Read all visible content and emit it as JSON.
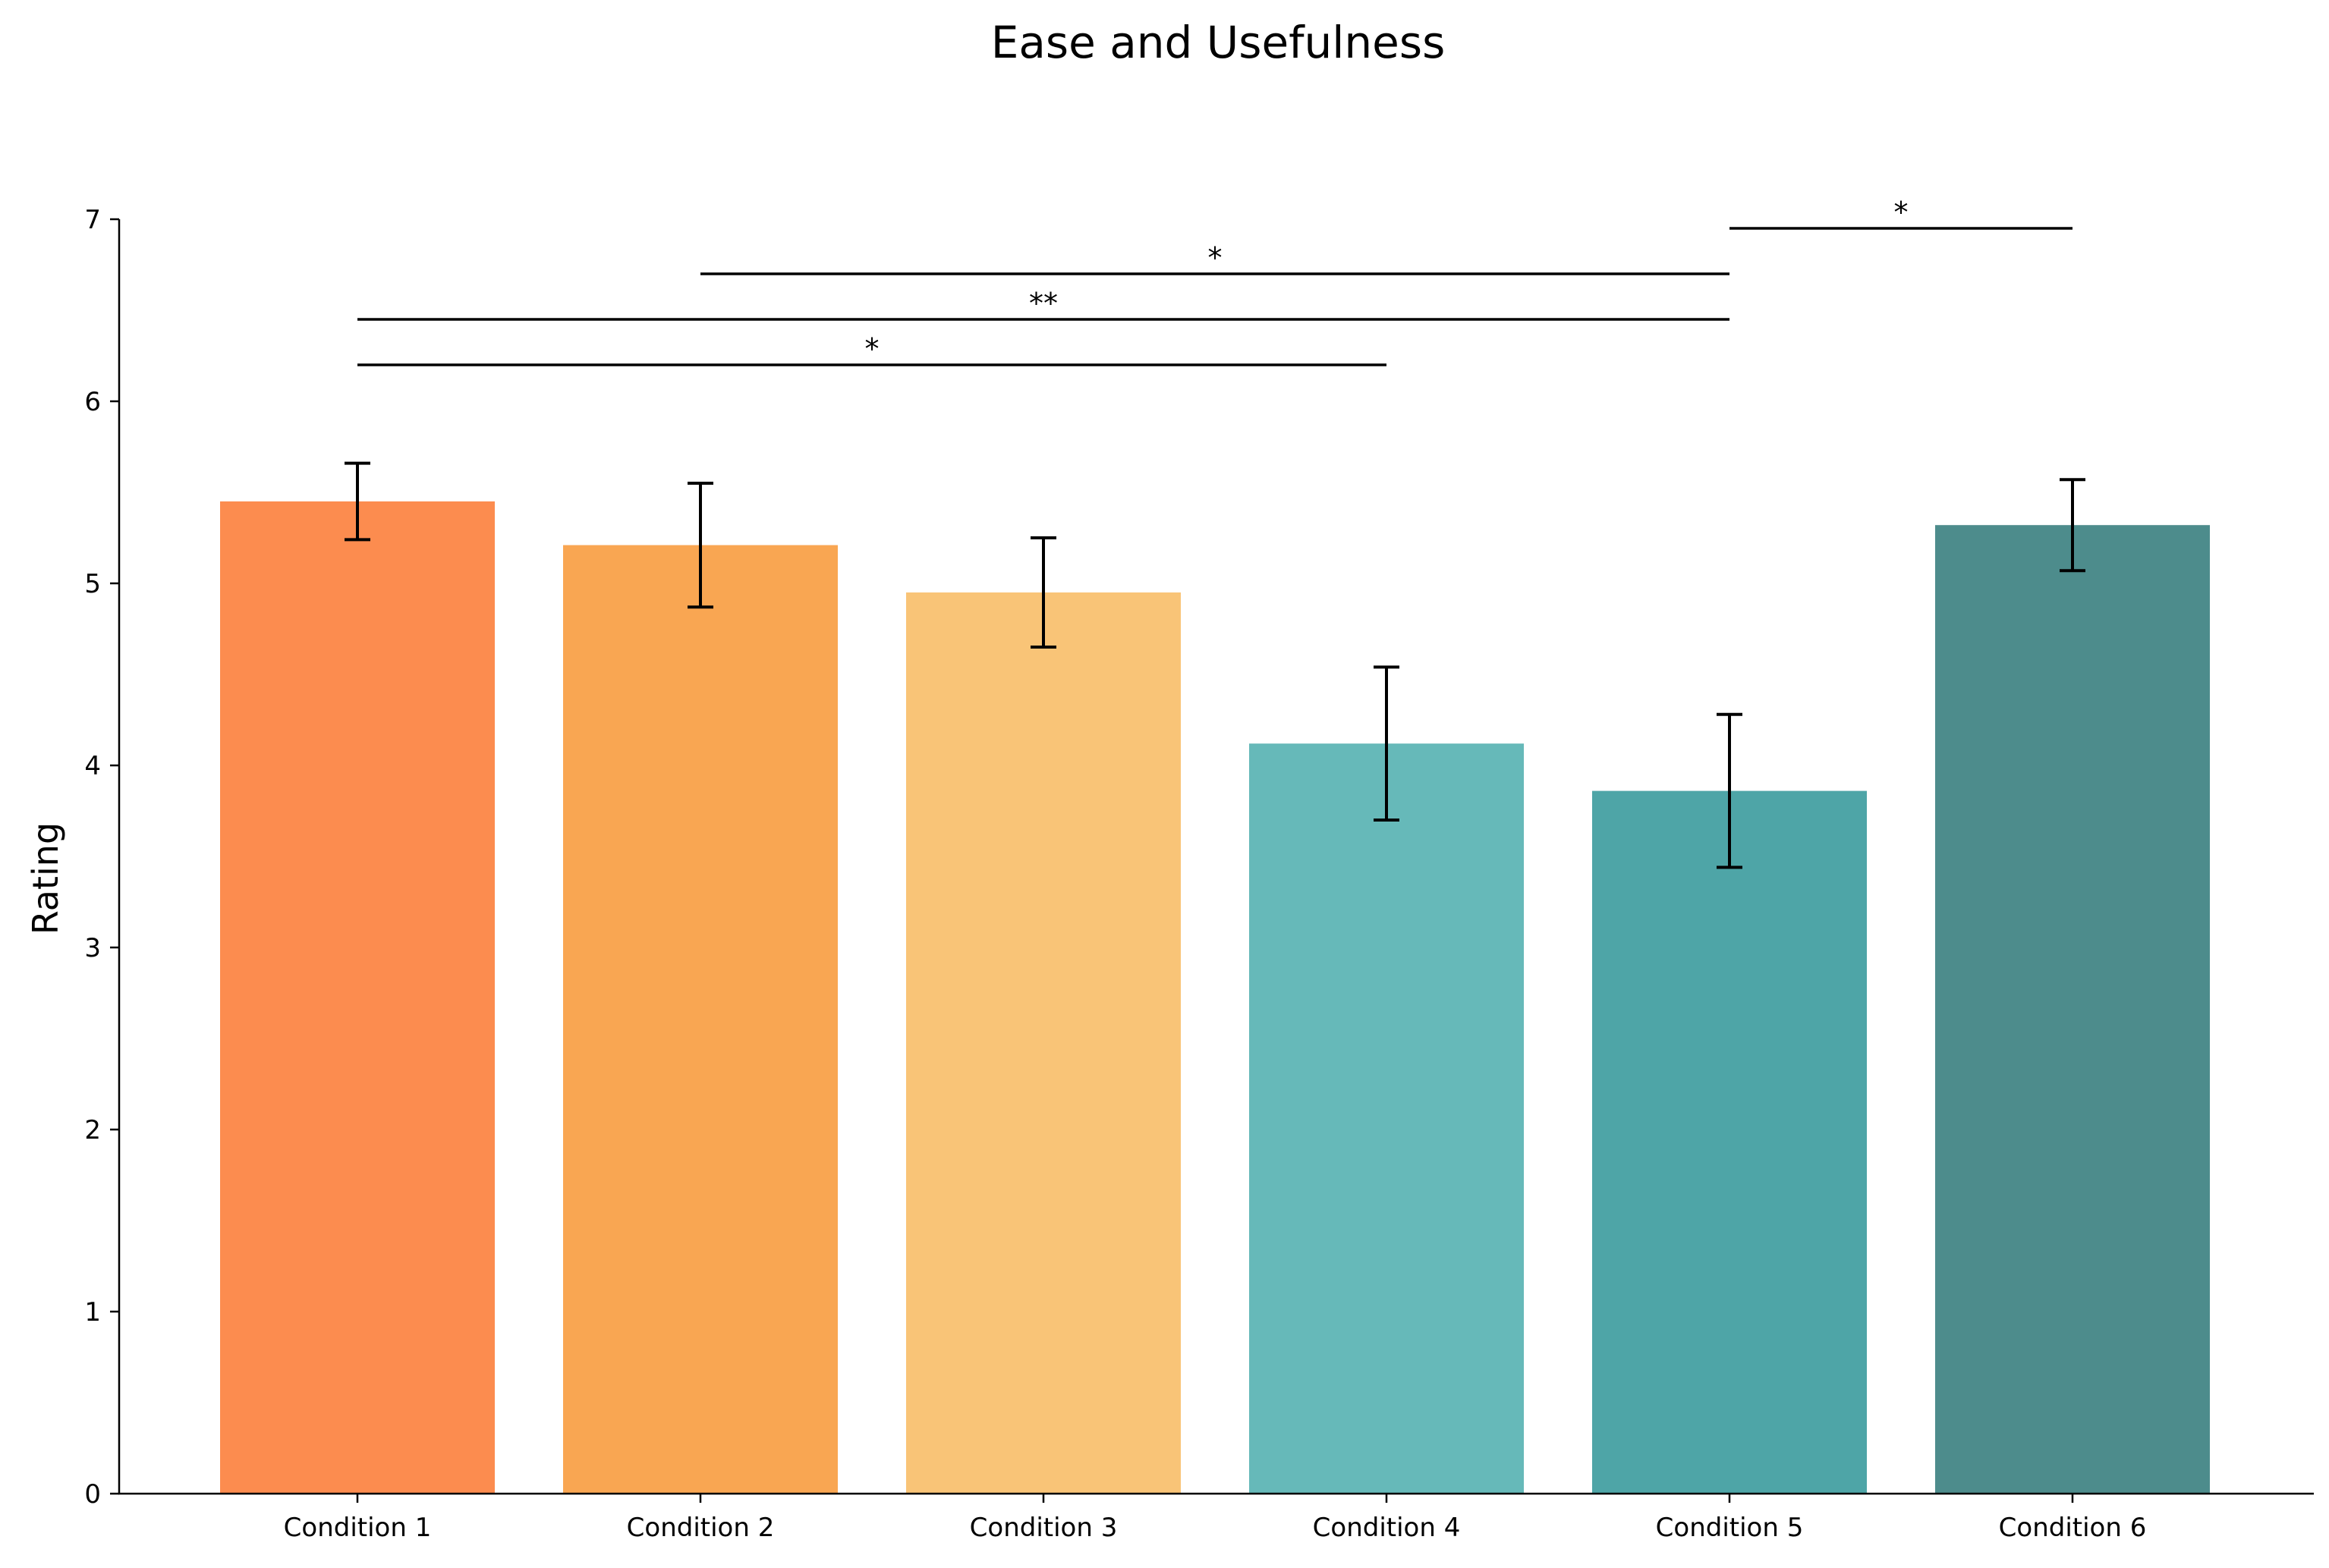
{
  "chart_data": {
    "type": "bar",
    "title": "Ease and Usefulness",
    "xlabel": "",
    "ylabel": "Rating",
    "ylim": [
      0,
      7
    ],
    "yticks": [
      "0",
      "1",
      "2",
      "3",
      "4",
      "5",
      "6",
      "7"
    ],
    "categories": [
      "Condition 1",
      "Condition 2",
      "Condition 3",
      "Condition 4",
      "Condition 5",
      "Condition 6"
    ],
    "values": [
      5.45,
      5.21,
      4.95,
      4.12,
      3.86,
      5.32
    ],
    "error": [
      0.21,
      0.34,
      0.3,
      0.42,
      0.42,
      0.25
    ],
    "colors": [
      "#FC8C4F",
      "#F9A652",
      "#F9C477",
      "#66B9B9",
      "#4EA5A7",
      "#4D8C8C"
    ],
    "significance": [
      {
        "from": "Condition 1",
        "to": "Condition 4",
        "y": 6.2,
        "label": "*"
      },
      {
        "from": "Condition 1",
        "to": "Condition 5",
        "y": 6.45,
        "label": "**"
      },
      {
        "from": "Condition 2",
        "to": "Condition 5",
        "y": 6.7,
        "label": "*"
      },
      {
        "from": "Condition 5",
        "to": "Condition 6",
        "y": 6.95,
        "label": "*"
      }
    ],
    "grid": false,
    "legend": "none"
  }
}
